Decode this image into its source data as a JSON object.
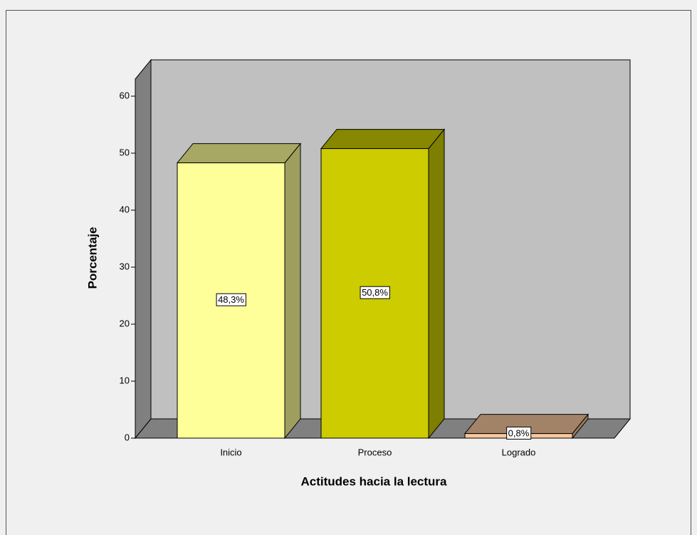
{
  "chart_data": {
    "type": "bar3d",
    "x_label": "Actitudes hacia la lectura",
    "y_label": "Porcentaje",
    "categories": [
      "Inicio",
      "Proceso",
      "Logrado"
    ],
    "values": [
      48.3,
      50.8,
      0.8
    ],
    "value_labels": [
      "48,3%",
      "50,8%",
      "0,8%"
    ],
    "colors": [
      "#ffff99",
      "#cccc00",
      "#f7c69c"
    ],
    "ylim": [
      0,
      63
    ],
    "yticks": [
      0,
      10,
      20,
      30,
      40,
      50,
      60
    ],
    "grid": false
  }
}
